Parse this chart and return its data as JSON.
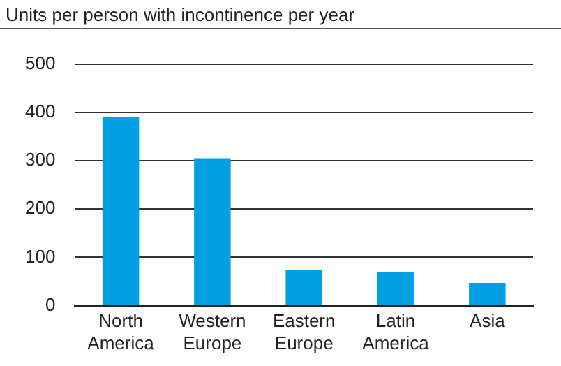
{
  "chart_data": {
    "type": "bar",
    "ylabel": "Units per person with incontinence per year",
    "categories": [
      "North America",
      "Western Europe",
      "Eastern Europe",
      "Latin America",
      "Asia"
    ],
    "values": [
      390,
      305,
      74,
      70,
      47
    ],
    "color": "#00a0e3",
    "ylim": [
      0,
      500
    ],
    "yticks": [
      0,
      100,
      200,
      300,
      400,
      500
    ],
    "grid": "y",
    "legend": false
  }
}
